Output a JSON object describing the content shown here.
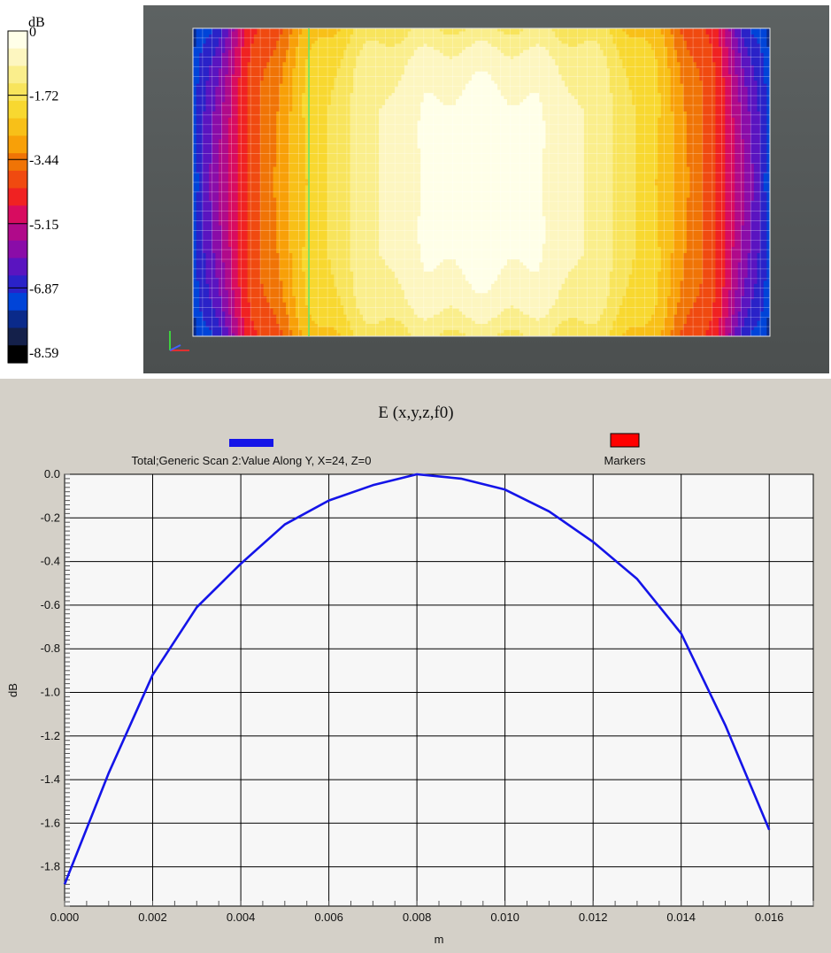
{
  "colorbar": {
    "unit": "dB",
    "tick_labels": [
      "0",
      "-1.72",
      "-3.44",
      "-5.15",
      "-6.87",
      "-8.59"
    ],
    "colors": [
      "#000000",
      "#14204a",
      "#0a2a8a",
      "#0044d8",
      "#2a22c8",
      "#5a14c0",
      "#8a0ca8",
      "#b00a8a",
      "#d80c60",
      "#f02222",
      "#f04a10",
      "#f07406",
      "#f8a008",
      "#f8c018",
      "#f8d830",
      "#f8e45c",
      "#faee8c",
      "#fdf6c0",
      "#ffffe8"
    ]
  },
  "chart_data": {
    "type": "line",
    "title": "E (x,y,z,f0)",
    "xlabel": "m",
    "ylabel": "dB",
    "xlim": [
      0,
      0.017
    ],
    "ylim": [
      -1.98,
      0.0
    ],
    "x_ticks": [
      "0.000",
      "0.002",
      "0.004",
      "0.006",
      "0.008",
      "0.010",
      "0.012",
      "0.014",
      "0.016"
    ],
    "y_ticks": [
      "0.0",
      "-0.2",
      "-0.4",
      "-0.6",
      "-0.8",
      "-1.0",
      "-1.2",
      "-1.4",
      "-1.6",
      "-1.8"
    ],
    "grid": true,
    "legend": [
      {
        "name": "Total;Generic Scan 2:Value Along Y, X=24, Z=0",
        "color": "#1414e8"
      },
      {
        "name": "Markers",
        "color": "#ff0000"
      }
    ],
    "series": [
      {
        "name": "Total;Generic Scan 2:Value Along Y, X=24, Z=0",
        "color": "#1414e8",
        "x": [
          0.0,
          0.001,
          0.002,
          0.003,
          0.004,
          0.005,
          0.006,
          0.007,
          0.008,
          0.009,
          0.01,
          0.011,
          0.012,
          0.013,
          0.014,
          0.015,
          0.016
        ],
        "y": [
          -1.88,
          -1.37,
          -0.92,
          -0.61,
          -0.41,
          -0.23,
          -0.12,
          -0.05,
          0.0,
          -0.02,
          -0.07,
          -0.17,
          -0.31,
          -0.48,
          -0.73,
          -1.15,
          -1.63
        ]
      }
    ]
  }
}
